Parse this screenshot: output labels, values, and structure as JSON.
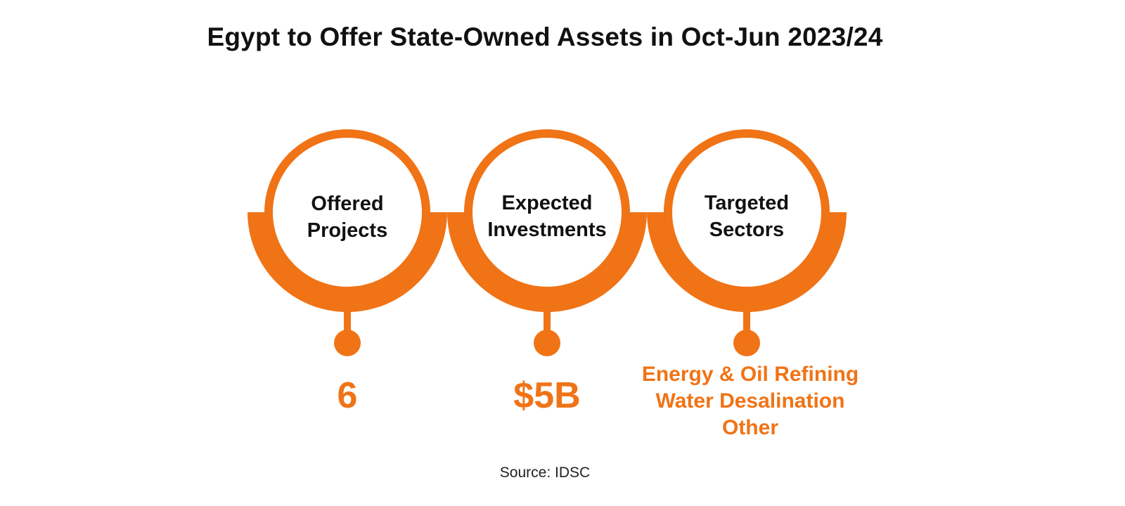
{
  "title": "Egypt to Offer State-Owned Assets in Oct-Jun 2023/24",
  "accent_color": "#f07316",
  "items": [
    {
      "label_lines": [
        "Offered",
        "Projects"
      ],
      "value_lines": [
        "6"
      ]
    },
    {
      "label_lines": [
        "Expected",
        "Investments"
      ],
      "value_lines": [
        "$5B"
      ]
    },
    {
      "label_lines": [
        "Targeted",
        "Sectors"
      ],
      "value_lines": [
        "Energy & Oil Refining",
        "Water Desalination",
        "Other"
      ]
    }
  ],
  "source": "Source: IDSC"
}
